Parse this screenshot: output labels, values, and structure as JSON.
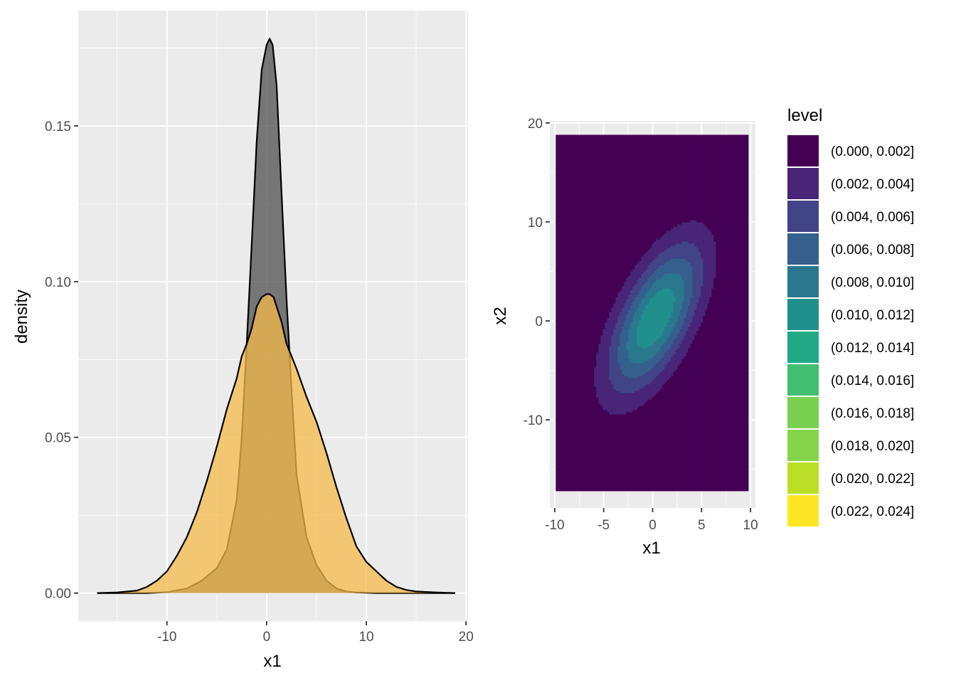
{
  "chart_data": [
    {
      "type": "area",
      "xlabel": "x1",
      "ylabel": "density",
      "xlim": [
        -18.9,
        20.2
      ],
      "ylim": [
        -0.009,
        0.187
      ],
      "x_ticks": [
        -10,
        0,
        10,
        20
      ],
      "x_tick_labels": [
        "-10",
        "0",
        "10",
        "20"
      ],
      "y_ticks": [
        0.0,
        0.05,
        0.1,
        0.15
      ],
      "y_tick_labels": [
        "0.00",
        "0.05",
        "0.10",
        "0.15"
      ],
      "grid": true,
      "series": [
        {
          "fill": "#595959",
          "fill_opacity": 0.8,
          "x": [
            -17.0,
            -14.5,
            -12.0,
            -10.0,
            -8.0,
            -6.5,
            -5.0,
            -4.0,
            -3.0,
            -2.5,
            -2.0,
            -1.5,
            -1.0,
            -0.5,
            0.0,
            0.3,
            0.6,
            1.0,
            1.5,
            2.0,
            2.5,
            3.0,
            4.0,
            5.0,
            6.0,
            7.0,
            8.0,
            9.0,
            11.0,
            14.0,
            18.9
          ],
          "y": [
            0.0,
            0.0,
            0.0,
            0.0003,
            0.0015,
            0.004,
            0.008,
            0.014,
            0.03,
            0.05,
            0.08,
            0.112,
            0.145,
            0.168,
            0.176,
            0.178,
            0.176,
            0.163,
            0.128,
            0.094,
            0.065,
            0.038,
            0.018,
            0.009,
            0.004,
            0.0015,
            0.0005,
            0.0002,
            0.0,
            0.0,
            0.0
          ]
        },
        {
          "fill": "#f5b94a",
          "fill_opacity": 0.75,
          "x": [
            -17.0,
            -15.0,
            -13.0,
            -12.0,
            -11.0,
            -10.0,
            -9.0,
            -8.0,
            -7.0,
            -6.0,
            -5.0,
            -4.0,
            -3.0,
            -2.5,
            -2.0,
            -1.5,
            -1.0,
            -0.5,
            0.0,
            0.3,
            0.7,
            1.0,
            1.5,
            2.0,
            2.5,
            3.0,
            4.0,
            5.0,
            6.0,
            7.0,
            8.0,
            9.0,
            10.0,
            11.0,
            12.0,
            13.0,
            14.0,
            15.0,
            17.0,
            18.9
          ],
          "y": [
            0.0,
            0.0002,
            0.0008,
            0.002,
            0.004,
            0.007,
            0.012,
            0.018,
            0.026,
            0.036,
            0.047,
            0.059,
            0.069,
            0.076,
            0.08,
            0.085,
            0.092,
            0.095,
            0.096,
            0.096,
            0.095,
            0.092,
            0.087,
            0.08,
            0.076,
            0.072,
            0.063,
            0.055,
            0.045,
            0.034,
            0.024,
            0.015,
            0.01,
            0.007,
            0.004,
            0.002,
            0.001,
            0.0005,
            0.0002,
            0.0
          ]
        }
      ]
    },
    {
      "type": "heatmap",
      "xlabel": "x1",
      "ylabel": "x2",
      "xlim": [
        -10.5,
        10.5
      ],
      "ylim": [
        -18.9,
        20.2
      ],
      "data_extent": {
        "x": [
          -9.9,
          9.8
        ],
        "y": [
          -17.2,
          18.8
        ]
      },
      "x_ticks": [
        -10,
        -5,
        0,
        5,
        10
      ],
      "x_tick_labels": [
        "-10",
        "-5",
        "0",
        "5",
        "10"
      ],
      "y_ticks": [
        -10,
        0,
        10,
        20
      ],
      "y_tick_labels": [
        "-10",
        "0",
        "10",
        "20"
      ],
      "grid": true,
      "density_model": {
        "mean": [
          0.3,
          0.3
        ],
        "sd": [
          3.3,
          5.2
        ],
        "rho": 0.62
      },
      "legend": {
        "title": "level",
        "placement": "right",
        "levels": [
          {
            "label": "(0.000, 0.002]",
            "color": "#440154"
          },
          {
            "label": "(0.002, 0.004]",
            "color": "#482576"
          },
          {
            "label": "(0.004, 0.006]",
            "color": "#414487"
          },
          {
            "label": "(0.006, 0.008]",
            "color": "#35608D"
          },
          {
            "label": "(0.008, 0.010]",
            "color": "#2A788E"
          },
          {
            "label": "(0.010, 0.012]",
            "color": "#21908C"
          },
          {
            "label": "(0.012, 0.014]",
            "color": "#22A884"
          },
          {
            "label": "(0.014, 0.016]",
            "color": "#43BF71"
          },
          {
            "label": "(0.016, 0.018]",
            "color": "#7AD151"
          },
          {
            "label": "(0.018, 0.020]",
            "color": "#85D54A"
          },
          {
            "label": "(0.020, 0.022]",
            "color": "#BBDF27"
          },
          {
            "label": "(0.022, 0.024]",
            "color": "#FDE725"
          }
        ]
      }
    }
  ]
}
